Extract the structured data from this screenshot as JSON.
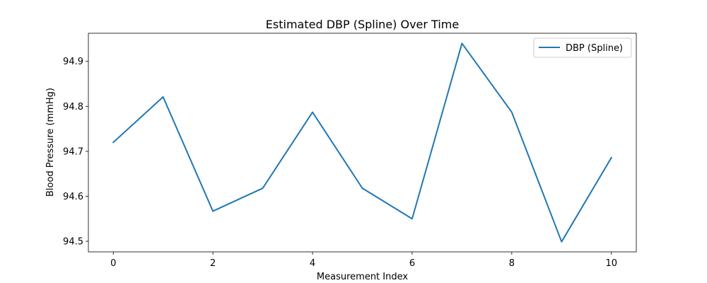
{
  "chart_data": {
    "type": "line",
    "title": "Estimated DBP (Spline) Over Time",
    "xlabel": "Measurement Index",
    "ylabel": "Blood Pressure (mmHg)",
    "x": [
      0,
      1,
      2,
      3,
      4,
      5,
      6,
      7,
      8,
      9,
      10
    ],
    "series": [
      {
        "name": "DBP (Spline)",
        "color": "#1f77b4",
        "values": [
          94.72,
          94.821,
          94.567,
          94.618,
          94.787,
          94.618,
          94.55,
          94.94,
          94.787,
          94.499,
          94.686
        ]
      }
    ],
    "xlim": [
      -0.5,
      10.5
    ],
    "ylim": [
      94.4765,
      94.9625
    ],
    "xticks": [
      0,
      2,
      4,
      6,
      8,
      10
    ],
    "xtick_labels": [
      "0",
      "2",
      "4",
      "6",
      "8",
      "10"
    ],
    "yticks": [
      94.5,
      94.6,
      94.7,
      94.8,
      94.9
    ],
    "ytick_labels": [
      "94.5",
      "94.6",
      "94.7",
      "94.8",
      "94.9"
    ],
    "grid": false,
    "legend_position": "top-right"
  }
}
